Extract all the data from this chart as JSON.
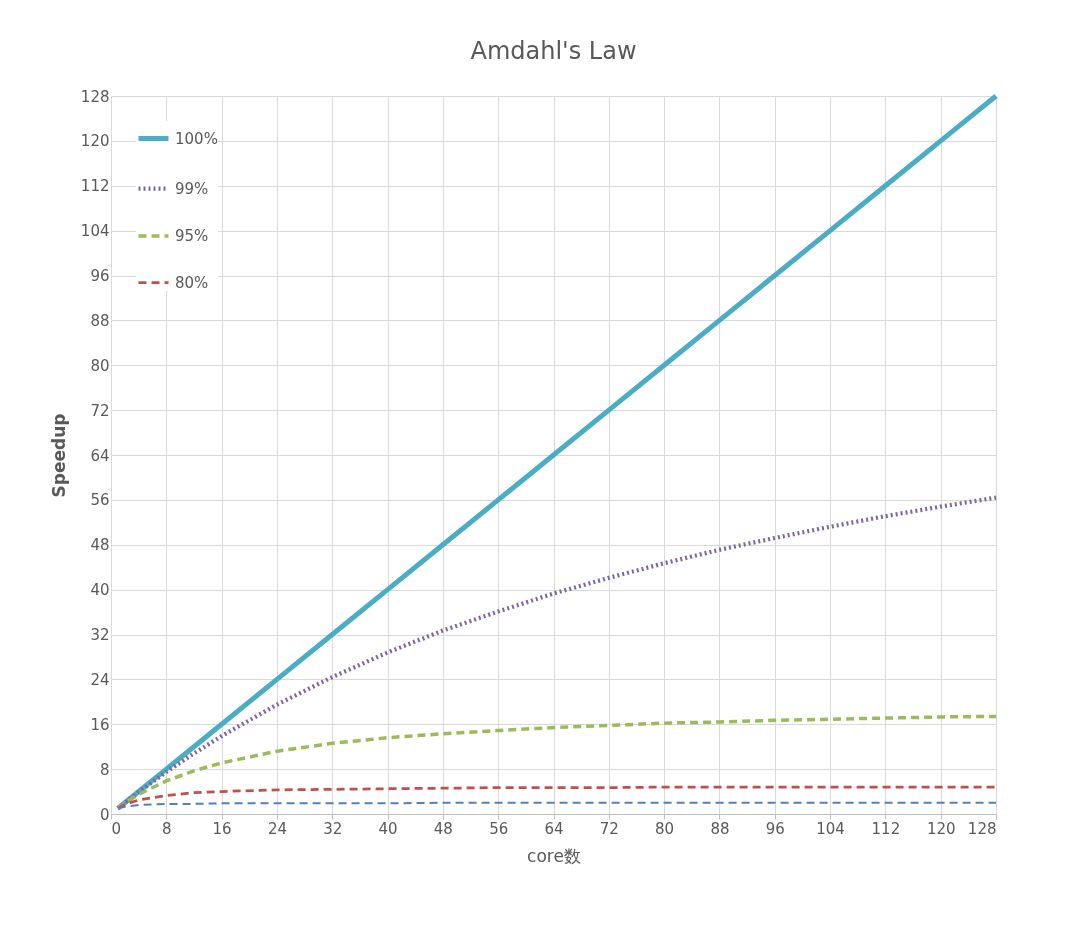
{
  "chart_data": {
    "type": "line",
    "title": "Amdahl's Law",
    "xlabel": "core数",
    "ylabel": "Speedup",
    "x": [
      1,
      2,
      4,
      8,
      12,
      16,
      24,
      32,
      40,
      48,
      56,
      64,
      72,
      80,
      88,
      96,
      104,
      112,
      120,
      128
    ],
    "xlim": [
      0,
      128
    ],
    "ylim": [
      0,
      128
    ],
    "xticks": [
      0,
      8,
      16,
      24,
      32,
      40,
      48,
      56,
      64,
      72,
      80,
      88,
      96,
      104,
      112,
      120,
      128
    ],
    "yticks": [
      0,
      8,
      16,
      24,
      32,
      40,
      48,
      56,
      64,
      72,
      80,
      88,
      96,
      104,
      112,
      120,
      128
    ],
    "grid": true,
    "legend": "top left",
    "marker": "none",
    "series": [
      {
        "name": "100%",
        "color": "#4bacc6",
        "line_style": "solid",
        "values": [
          1,
          2,
          4,
          8,
          12,
          16,
          24,
          32,
          40,
          48,
          56,
          64,
          72,
          80,
          88,
          96,
          104,
          112,
          120,
          128
        ]
      },
      {
        "name": "99%",
        "color": "#8064a2",
        "line_style": "dotted",
        "values": [
          1,
          2,
          3.9,
          7.5,
          10.8,
          13.9,
          19.5,
          24.4,
          28.8,
          32.7,
          36.1,
          39.3,
          42.1,
          44.7,
          47.1,
          49.2,
          51.2,
          53.1,
          54.8,
          56.4
        ]
      },
      {
        "name": "95%",
        "color": "#9bbb59",
        "line_style": "dashed",
        "values": [
          1,
          1.9,
          3.5,
          5.9,
          7.7,
          9.1,
          11.2,
          12.6,
          13.6,
          14.3,
          14.9,
          15.4,
          15.8,
          16.2,
          16.4,
          16.7,
          16.9,
          17.1,
          17.3,
          17.4
        ]
      },
      {
        "name": "80%",
        "color": "#c0504d",
        "line_style": "dashed",
        "values": [
          1,
          1.7,
          2.5,
          3.3,
          3.8,
          4,
          4.3,
          4.4,
          4.5,
          4.6,
          4.7,
          4.7,
          4.7,
          4.8,
          4.8,
          4.8,
          4.8,
          4.8,
          4.8,
          4.8
        ]
      },
      {
        "color": "#4f81bd",
        "line_style": "dashed",
        "values": [
          1,
          1.3,
          1.6,
          1.8,
          1.8,
          1.9,
          1.9,
          1.9,
          1.9,
          2,
          2,
          2,
          2,
          2,
          2,
          2,
          2,
          2,
          2,
          2
        ]
      }
    ]
  }
}
